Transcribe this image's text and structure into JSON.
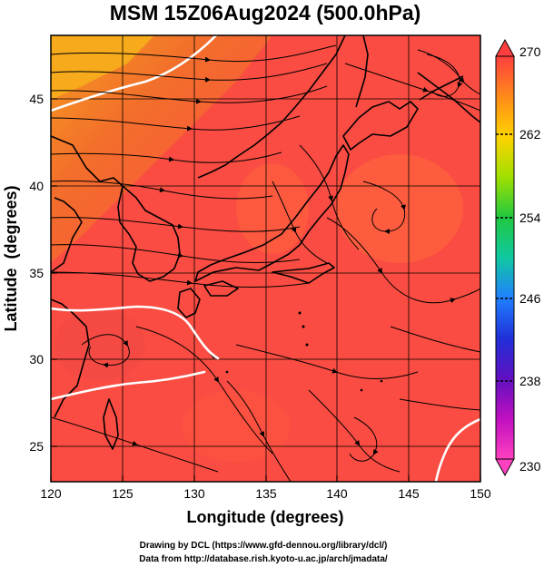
{
  "title": "MSM 15Z06Aug2024 (500.0hPa)",
  "x_axis": {
    "label": "Longitude (degrees)",
    "ticks": [
      "120",
      "125",
      "130",
      "135",
      "140",
      "145",
      "150"
    ]
  },
  "y_axis": {
    "label": "Latitude  (degrees)",
    "ticks": [
      "25",
      "30",
      "35",
      "40",
      "45"
    ]
  },
  "colorbar": {
    "ticks": [
      "270",
      "262",
      "254",
      "246",
      "238",
      "230"
    ],
    "colors": [
      "#ff3f3f",
      "#ff8a1a",
      "#ffd200",
      "#a0e000",
      "#20c840",
      "#10c8a0",
      "#2080ff",
      "#2030d8",
      "#6010c0",
      "#c010c0",
      "#ff40c0"
    ]
  },
  "credits": {
    "line1": "Drawing by DCL (https://www.gfd-dennou.org/library/dcl/)",
    "line2": "Data from http://database.rish.kyoto-u.ac.jp/arch/jmadata/"
  },
  "map": {
    "lon_range": [
      120,
      150
    ],
    "lat_range": [
      22.5,
      48
    ],
    "field_colors": {
      "warm": "#fa4c42",
      "warmer": "#ff6a40",
      "orange": "#f48a2c",
      "yellow_orange": "#f4a020",
      "contour": "#ffffff",
      "coast": "#000000",
      "grid": "#000000"
    }
  }
}
